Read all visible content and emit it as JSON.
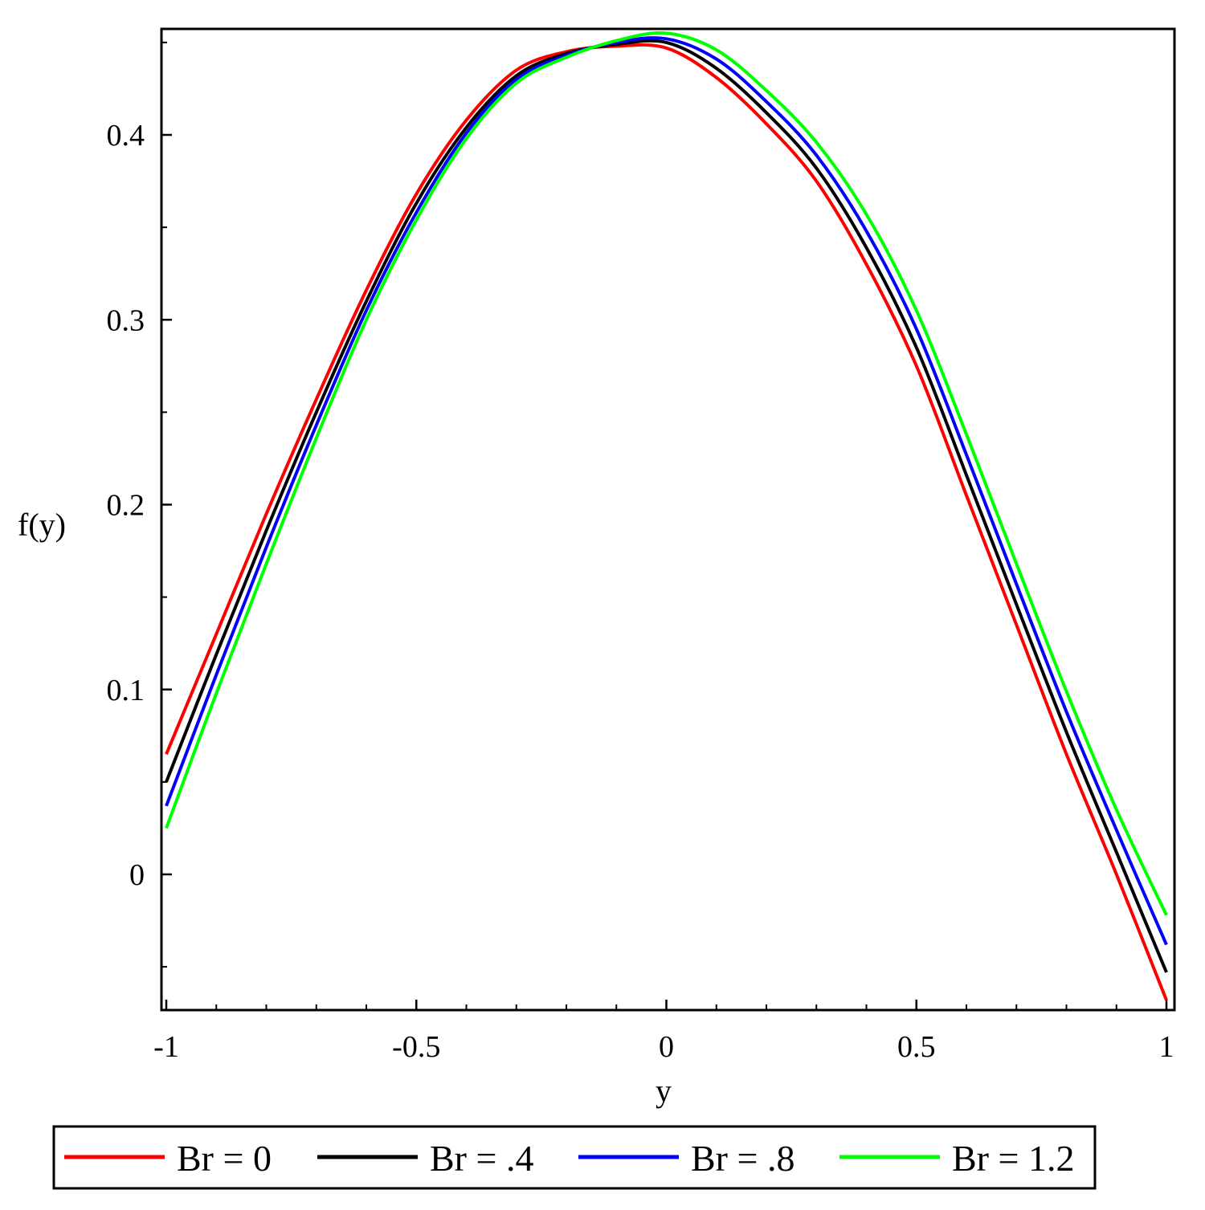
{
  "chart_data": {
    "type": "line",
    "title": "",
    "xlabel": "y",
    "ylabel": "f(y)",
    "xlim": [
      -1,
      1
    ],
    "ylim": [
      -0.07,
      0.46
    ],
    "x_ticks": [
      -1,
      -0.5,
      0,
      0.5,
      1
    ],
    "x_tick_labels": [
      "-1",
      "-0.5",
      "0",
      "0.5",
      "1"
    ],
    "y_ticks": [
      0,
      0.1,
      0.2,
      0.3,
      0.4
    ],
    "y_tick_labels": [
      "0",
      "0.1",
      "0.2",
      "0.3",
      "0.4"
    ],
    "grid": false,
    "legend_position": "bottom",
    "series": [
      {
        "name": "Br = 0",
        "color": "#ff0000",
        "x": [
          -1,
          -0.9,
          -0.8,
          -0.7,
          -0.6,
          -0.5,
          -0.4,
          -0.3,
          -0.2,
          -0.1,
          0,
          0.1,
          0.2,
          0.3,
          0.4,
          0.5,
          0.6,
          0.7,
          0.8,
          0.9,
          1
        ],
        "y": [
          0.065,
          0.13,
          0.195,
          0.257,
          0.316,
          0.368,
          0.408,
          0.435,
          0.445,
          0.448,
          0.447,
          0.431,
          0.406,
          0.375,
          0.33,
          0.275,
          0.205,
          0.135,
          0.065,
          0.0,
          -0.068
        ]
      },
      {
        "name": "Br = .4",
        "color": "#000000",
        "x": [
          -1,
          -0.9,
          -0.8,
          -0.7,
          -0.6,
          -0.5,
          -0.4,
          -0.3,
          -0.2,
          -0.1,
          0,
          0.1,
          0.2,
          0.3,
          0.4,
          0.5,
          0.6,
          0.7,
          0.8,
          0.9,
          1
        ],
        "y": [
          0.05,
          0.119,
          0.186,
          0.25,
          0.31,
          0.363,
          0.404,
          0.432,
          0.444,
          0.449,
          0.45,
          0.436,
          0.412,
          0.382,
          0.339,
          0.285,
          0.216,
          0.146,
          0.077,
          0.012,
          -0.053
        ]
      },
      {
        "name": "Br = .8",
        "color": "#0000ff",
        "x": [
          -1,
          -0.9,
          -0.8,
          -0.7,
          -0.6,
          -0.5,
          -0.4,
          -0.3,
          -0.2,
          -0.1,
          0,
          0.1,
          0.2,
          0.3,
          0.4,
          0.5,
          0.6,
          0.7,
          0.8,
          0.9,
          1
        ],
        "y": [
          0.037,
          0.108,
          0.177,
          0.243,
          0.305,
          0.358,
          0.401,
          0.43,
          0.443,
          0.45,
          0.452,
          0.441,
          0.418,
          0.389,
          0.348,
          0.295,
          0.227,
          0.157,
          0.088,
          0.024,
          -0.038
        ]
      },
      {
        "name": "Br = 1.2",
        "color": "#00ff00",
        "x": [
          -1,
          -0.9,
          -0.8,
          -0.7,
          -0.6,
          -0.5,
          -0.4,
          -0.3,
          -0.2,
          -0.1,
          0,
          0.1,
          0.2,
          0.3,
          0.4,
          0.5,
          0.6,
          0.7,
          0.8,
          0.9,
          1
        ],
        "y": [
          0.025,
          0.098,
          0.168,
          0.236,
          0.3,
          0.354,
          0.398,
          0.428,
          0.442,
          0.451,
          0.455,
          0.446,
          0.424,
          0.396,
          0.357,
          0.305,
          0.238,
          0.168,
          0.099,
          0.035,
          -0.022
        ]
      }
    ]
  }
}
